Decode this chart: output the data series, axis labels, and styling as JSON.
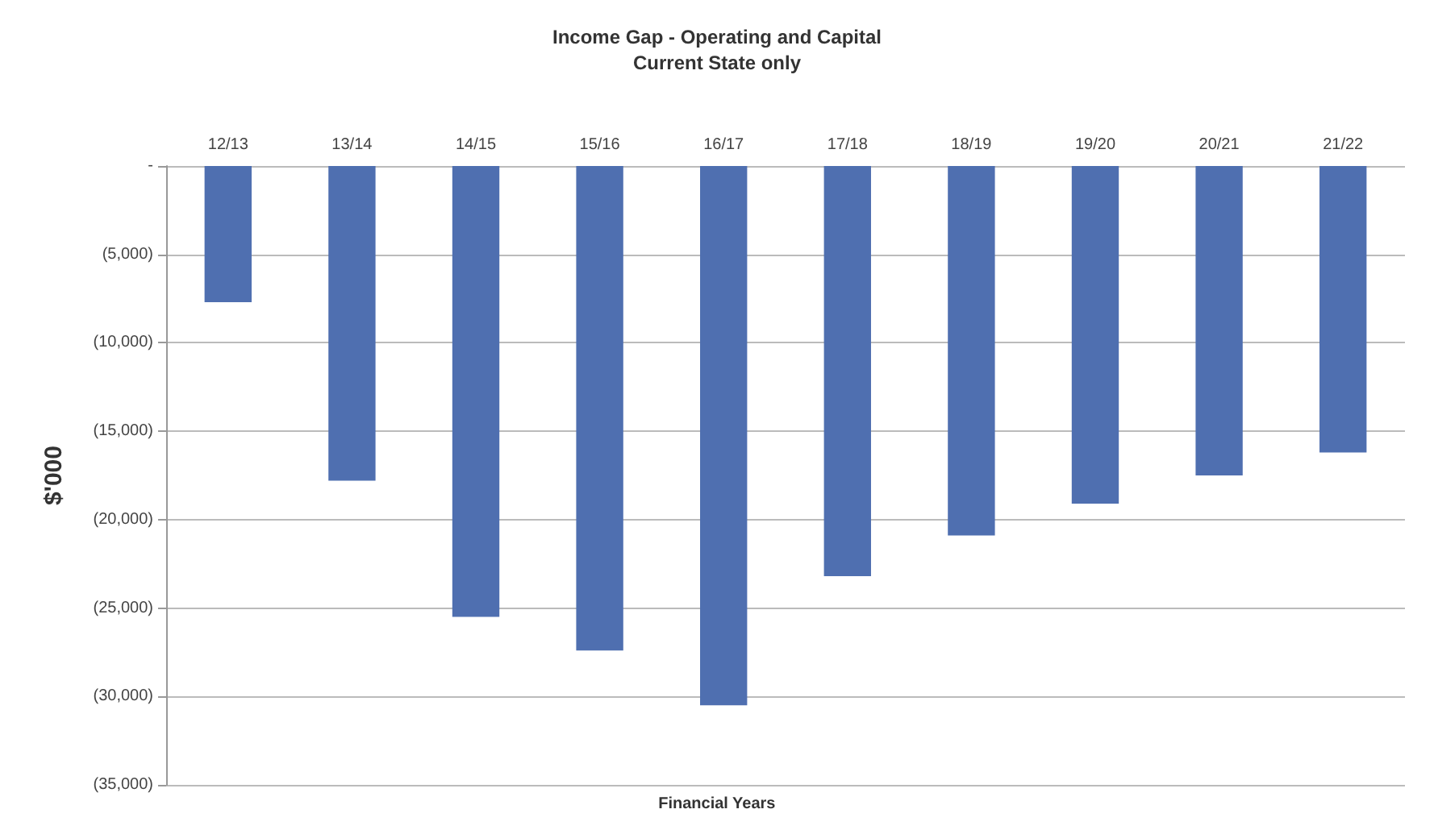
{
  "chart_data": {
    "type": "bar",
    "title": "Income Gap - Operating and Capital",
    "subtitle": "Current State only",
    "xlabel": "Financial Years",
    "ylabel": "$'000",
    "categories": [
      "12/13",
      "13/14",
      "14/15",
      "15/16",
      "16/17",
      "17/18",
      "18/19",
      "19/20",
      "20/21",
      "21/22"
    ],
    "values": [
      -7700,
      -17800,
      -25500,
      -27400,
      -30500,
      -23200,
      -20900,
      -19100,
      -17500,
      -16200
    ],
    "color": "#4f6fb0",
    "ylim": [
      -35000,
      0
    ],
    "yticks": [
      {
        "value": 0,
        "label": "-"
      },
      {
        "value": -5000,
        "label": "(5,000)"
      },
      {
        "value": -10000,
        "label": "(10,000)"
      },
      {
        "value": -15000,
        "label": "(15,000)"
      },
      {
        "value": -20000,
        "label": "(20,000)"
      },
      {
        "value": -25000,
        "label": "(25,000)"
      },
      {
        "value": -30000,
        "label": "(30,000)"
      },
      {
        "value": -35000,
        "label": "(35,000)"
      }
    ],
    "grid": "y"
  }
}
